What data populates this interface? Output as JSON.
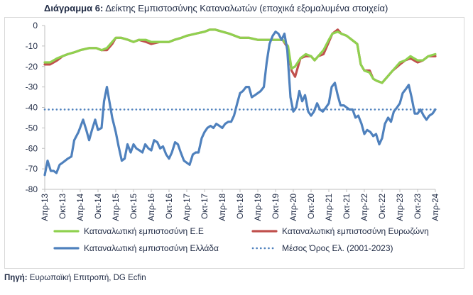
{
  "title": {
    "bold": "Διάγραμμα 6:",
    "text": "Δείκτης Εμπιστοσύνης Καταναλωτών (εποχικά εξομαλυμένα στοιχεία)"
  },
  "source": {
    "bold": "Πηγή:",
    "text": "Ευρωπαϊκή Επιτροπή, DG Ecfin"
  },
  "chart_data": {
    "type": "line",
    "ylim": [
      -80,
      0
    ],
    "yticks": [
      0,
      -10,
      -20,
      -30,
      -40,
      -50,
      -60,
      -70,
      -80
    ],
    "xlim": [
      2013.25,
      2024.25
    ],
    "xticks": [
      {
        "label": "Απρ-13",
        "x": 2013.25
      },
      {
        "label": "Οκτ-13",
        "x": 2013.75
      },
      {
        "label": "Απρ-14",
        "x": 2014.25
      },
      {
        "label": "Οκτ-14",
        "x": 2014.75
      },
      {
        "label": "Απρ-15",
        "x": 2015.25
      },
      {
        "label": "Οκτ-15",
        "x": 2015.75
      },
      {
        "label": "Απρ-16",
        "x": 2016.25
      },
      {
        "label": "Οκτ-16",
        "x": 2016.75
      },
      {
        "label": "Απρ-17",
        "x": 2017.25
      },
      {
        "label": "Οκτ-17",
        "x": 2017.75
      },
      {
        "label": "Απρ-18",
        "x": 2018.25
      },
      {
        "label": "Οκτ-18",
        "x": 2018.75
      },
      {
        "label": "Απρ-19",
        "x": 2019.25
      },
      {
        "label": "Οκτ-19",
        "x": 2019.75
      },
      {
        "label": "Απρ-20",
        "x": 2020.25
      },
      {
        "label": "Οκτ-20",
        "x": 2020.75
      },
      {
        "label": "Απρ-21",
        "x": 2021.25
      },
      {
        "label": "Οκτ-21",
        "x": 2021.75
      },
      {
        "label": "Απρ-22",
        "x": 2022.25
      },
      {
        "label": "Οκτ-22",
        "x": 2022.75
      },
      {
        "label": "Απρ-23",
        "x": 2023.25
      },
      {
        "label": "Οκτ-23",
        "x": 2023.75
      },
      {
        "label": "Απρ-24",
        "x": 2024.25
      }
    ],
    "grid": false,
    "legend_position": "bottom",
    "series": [
      {
        "name": "Καταναλωτική εμπιστοσύνη Ε.Ε",
        "color": "#8fd14f",
        "style": "solid",
        "points": [
          [
            2013.25,
            -18
          ],
          [
            2013.4,
            -18
          ],
          [
            2013.6,
            -16
          ],
          [
            2013.75,
            -15
          ],
          [
            2013.9,
            -14
          ],
          [
            2014.1,
            -13
          ],
          [
            2014.25,
            -12
          ],
          [
            2014.5,
            -11
          ],
          [
            2014.7,
            -11
          ],
          [
            2014.85,
            -12
          ],
          [
            2015.0,
            -11
          ],
          [
            2015.15,
            -8
          ],
          [
            2015.25,
            -6
          ],
          [
            2015.4,
            -6
          ],
          [
            2015.6,
            -7
          ],
          [
            2015.75,
            -8
          ],
          [
            2015.9,
            -7
          ],
          [
            2016.1,
            -7
          ],
          [
            2016.25,
            -8
          ],
          [
            2016.5,
            -8
          ],
          [
            2016.75,
            -8
          ],
          [
            2016.9,
            -7
          ],
          [
            2017.1,
            -6
          ],
          [
            2017.25,
            -5
          ],
          [
            2017.5,
            -4
          ],
          [
            2017.75,
            -3
          ],
          [
            2017.9,
            -2
          ],
          [
            2018.05,
            -2
          ],
          [
            2018.25,
            -3
          ],
          [
            2018.45,
            -4
          ],
          [
            2018.6,
            -5
          ],
          [
            2018.75,
            -6
          ],
          [
            2019.0,
            -6
          ],
          [
            2019.25,
            -7
          ],
          [
            2019.5,
            -7
          ],
          [
            2019.75,
            -7
          ],
          [
            2019.95,
            -7
          ],
          [
            2020.1,
            -10
          ],
          [
            2020.2,
            -21
          ],
          [
            2020.3,
            -20
          ],
          [
            2020.45,
            -16
          ],
          [
            2020.6,
            -14
          ],
          [
            2020.75,
            -15
          ],
          [
            2020.85,
            -17
          ],
          [
            2020.95,
            -15
          ],
          [
            2021.1,
            -12
          ],
          [
            2021.25,
            -7
          ],
          [
            2021.35,
            -4
          ],
          [
            2021.5,
            -3
          ],
          [
            2021.6,
            -4
          ],
          [
            2021.75,
            -5
          ],
          [
            2021.9,
            -7
          ],
          [
            2022.05,
            -9
          ],
          [
            2022.15,
            -19
          ],
          [
            2022.25,
            -22
          ],
          [
            2022.4,
            -23
          ],
          [
            2022.5,
            -26
          ],
          [
            2022.6,
            -27
          ],
          [
            2022.75,
            -28
          ],
          [
            2022.9,
            -25
          ],
          [
            2023.05,
            -22
          ],
          [
            2023.25,
            -18
          ],
          [
            2023.4,
            -17
          ],
          [
            2023.55,
            -15
          ],
          [
            2023.65,
            -16
          ],
          [
            2023.75,
            -17
          ],
          [
            2023.9,
            -17
          ],
          [
            2024.05,
            -15
          ],
          [
            2024.25,
            -14
          ]
        ]
      },
      {
        "name": "Καταναλωτική εμπιστοσύνη Ευρωζώνη",
        "color": "#c0504d",
        "style": "solid",
        "points": [
          [
            2013.25,
            -19
          ],
          [
            2013.4,
            -19
          ],
          [
            2013.6,
            -17
          ],
          [
            2013.75,
            -15
          ],
          [
            2013.9,
            -14
          ],
          [
            2014.1,
            -13
          ],
          [
            2014.25,
            -12
          ],
          [
            2014.5,
            -11
          ],
          [
            2014.7,
            -11
          ],
          [
            2014.85,
            -12
          ],
          [
            2015.0,
            -12
          ],
          [
            2015.15,
            -9
          ],
          [
            2015.25,
            -6
          ],
          [
            2015.4,
            -6
          ],
          [
            2015.6,
            -7
          ],
          [
            2015.75,
            -8
          ],
          [
            2015.9,
            -7
          ],
          [
            2016.1,
            -8
          ],
          [
            2016.25,
            -9
          ],
          [
            2016.5,
            -8
          ],
          [
            2016.75,
            -8
          ],
          [
            2016.9,
            -7
          ],
          [
            2017.1,
            -6
          ],
          [
            2017.25,
            -5
          ],
          [
            2017.5,
            -4
          ],
          [
            2017.75,
            -3
          ],
          [
            2017.9,
            -2
          ],
          [
            2018.05,
            -2
          ],
          [
            2018.25,
            -3
          ],
          [
            2018.45,
            -4
          ],
          [
            2018.6,
            -5
          ],
          [
            2018.75,
            -6
          ],
          [
            2019.0,
            -6
          ],
          [
            2019.25,
            -7
          ],
          [
            2019.5,
            -7
          ],
          [
            2019.75,
            -7
          ],
          [
            2019.95,
            -7
          ],
          [
            2020.1,
            -11
          ],
          [
            2020.2,
            -22
          ],
          [
            2020.3,
            -25
          ],
          [
            2020.45,
            -16
          ],
          [
            2020.6,
            -15
          ],
          [
            2020.75,
            -15
          ],
          [
            2020.85,
            -17
          ],
          [
            2020.95,
            -15
          ],
          [
            2021.1,
            -14
          ],
          [
            2021.25,
            -8
          ],
          [
            2021.35,
            -4
          ],
          [
            2021.5,
            -2
          ],
          [
            2021.6,
            -4
          ],
          [
            2021.75,
            -5
          ],
          [
            2021.9,
            -7
          ],
          [
            2022.05,
            -9
          ],
          [
            2022.15,
            -19
          ],
          [
            2022.25,
            -22
          ],
          [
            2022.4,
            -22
          ],
          [
            2022.5,
            -26
          ],
          [
            2022.6,
            -27
          ],
          [
            2022.75,
            -28
          ],
          [
            2022.9,
            -25
          ],
          [
            2023.05,
            -22
          ],
          [
            2023.25,
            -19
          ],
          [
            2023.4,
            -17
          ],
          [
            2023.55,
            -16
          ],
          [
            2023.65,
            -17
          ],
          [
            2023.75,
            -18
          ],
          [
            2023.9,
            -17
          ],
          [
            2024.05,
            -15
          ],
          [
            2024.25,
            -15
          ]
        ]
      },
      {
        "name": "Καταναλωτική εμπιστοσύνη Ελλάδα",
        "color": "#4f81bd",
        "style": "solid",
        "points": [
          [
            2013.25,
            -73
          ],
          [
            2013.33,
            -66
          ],
          [
            2013.42,
            -71
          ],
          [
            2013.5,
            -71
          ],
          [
            2013.58,
            -72
          ],
          [
            2013.67,
            -68
          ],
          [
            2013.75,
            -67
          ],
          [
            2013.9,
            -65
          ],
          [
            2014.0,
            -64
          ],
          [
            2014.08,
            -56
          ],
          [
            2014.2,
            -52
          ],
          [
            2014.33,
            -46
          ],
          [
            2014.42,
            -51
          ],
          [
            2014.5,
            -56
          ],
          [
            2014.58,
            -51
          ],
          [
            2014.67,
            -46
          ],
          [
            2014.75,
            -51
          ],
          [
            2014.85,
            -50
          ],
          [
            2014.92,
            -37
          ],
          [
            2015.0,
            -30
          ],
          [
            2015.05,
            -35
          ],
          [
            2015.15,
            -45
          ],
          [
            2015.25,
            -52
          ],
          [
            2015.33,
            -59
          ],
          [
            2015.42,
            -66
          ],
          [
            2015.5,
            -65
          ],
          [
            2015.58,
            -58
          ],
          [
            2015.67,
            -62
          ],
          [
            2015.75,
            -58
          ],
          [
            2015.83,
            -60
          ],
          [
            2015.92,
            -61
          ],
          [
            2016.0,
            -62
          ],
          [
            2016.08,
            -58
          ],
          [
            2016.17,
            -60
          ],
          [
            2016.25,
            -61
          ],
          [
            2016.33,
            -56
          ],
          [
            2016.42,
            -57
          ],
          [
            2016.5,
            -60
          ],
          [
            2016.58,
            -59
          ],
          [
            2016.67,
            -63
          ],
          [
            2016.75,
            -65
          ],
          [
            2016.83,
            -62
          ],
          [
            2016.92,
            -57
          ],
          [
            2017.0,
            -58
          ],
          [
            2017.08,
            -62
          ],
          [
            2017.17,
            -66
          ],
          [
            2017.25,
            -67
          ],
          [
            2017.33,
            -68
          ],
          [
            2017.42,
            -63
          ],
          [
            2017.5,
            -62
          ],
          [
            2017.58,
            -62
          ],
          [
            2017.67,
            -55
          ],
          [
            2017.75,
            -52
          ],
          [
            2017.83,
            -50
          ],
          [
            2017.92,
            -49
          ],
          [
            2018.0,
            -50
          ],
          [
            2018.08,
            -48
          ],
          [
            2018.17,
            -49
          ],
          [
            2018.25,
            -50
          ],
          [
            2018.33,
            -48
          ],
          [
            2018.42,
            -47
          ],
          [
            2018.5,
            -47
          ],
          [
            2018.58,
            -44
          ],
          [
            2018.67,
            -38
          ],
          [
            2018.75,
            -33
          ],
          [
            2018.83,
            -32
          ],
          [
            2018.92,
            -30
          ],
          [
            2019.0,
            -30
          ],
          [
            2019.08,
            -35
          ],
          [
            2019.17,
            -34
          ],
          [
            2019.25,
            -33
          ],
          [
            2019.33,
            -32
          ],
          [
            2019.42,
            -30
          ],
          [
            2019.5,
            -18
          ],
          [
            2019.58,
            -9
          ],
          [
            2019.67,
            -5
          ],
          [
            2019.75,
            -3
          ],
          [
            2019.83,
            -4
          ],
          [
            2019.92,
            -7
          ],
          [
            2020.0,
            -4
          ],
          [
            2020.08,
            -12
          ],
          [
            2020.17,
            -35
          ],
          [
            2020.25,
            -42
          ],
          [
            2020.33,
            -40
          ],
          [
            2020.42,
            -32
          ],
          [
            2020.5,
            -37
          ],
          [
            2020.58,
            -34
          ],
          [
            2020.67,
            -42
          ],
          [
            2020.75,
            -44
          ],
          [
            2020.83,
            -42
          ],
          [
            2020.92,
            -38
          ],
          [
            2021.0,
            -41
          ],
          [
            2021.08,
            -42
          ],
          [
            2021.17,
            -40
          ],
          [
            2021.25,
            -38
          ],
          [
            2021.33,
            -30
          ],
          [
            2021.42,
            -28
          ],
          [
            2021.5,
            -34
          ],
          [
            2021.58,
            -39
          ],
          [
            2021.67,
            -39
          ],
          [
            2021.75,
            -40
          ],
          [
            2021.83,
            -41
          ],
          [
            2021.92,
            -41
          ],
          [
            2022.0,
            -45
          ],
          [
            2022.08,
            -44
          ],
          [
            2022.17,
            -48
          ],
          [
            2022.25,
            -53
          ],
          [
            2022.33,
            -51
          ],
          [
            2022.42,
            -52
          ],
          [
            2022.5,
            -54
          ],
          [
            2022.58,
            -53
          ],
          [
            2022.67,
            -58
          ],
          [
            2022.75,
            -55
          ],
          [
            2022.83,
            -48
          ],
          [
            2022.92,
            -45
          ],
          [
            2023.0,
            -47
          ],
          [
            2023.08,
            -42
          ],
          [
            2023.17,
            -40
          ],
          [
            2023.25,
            -38
          ],
          [
            2023.33,
            -33
          ],
          [
            2023.42,
            -31
          ],
          [
            2023.5,
            -29
          ],
          [
            2023.58,
            -35
          ],
          [
            2023.67,
            -43
          ],
          [
            2023.75,
            -43
          ],
          [
            2023.83,
            -41
          ],
          [
            2023.92,
            -44
          ],
          [
            2024.0,
            -46
          ],
          [
            2024.08,
            -44
          ],
          [
            2024.17,
            -43
          ],
          [
            2024.25,
            -41
          ]
        ]
      },
      {
        "name": "Μέσος Όρος Ελ. (2001-2023)",
        "color": "#4f81bd",
        "style": "dotted",
        "points": [
          [
            2013.25,
            -41
          ],
          [
            2024.25,
            -41
          ]
        ]
      }
    ]
  }
}
